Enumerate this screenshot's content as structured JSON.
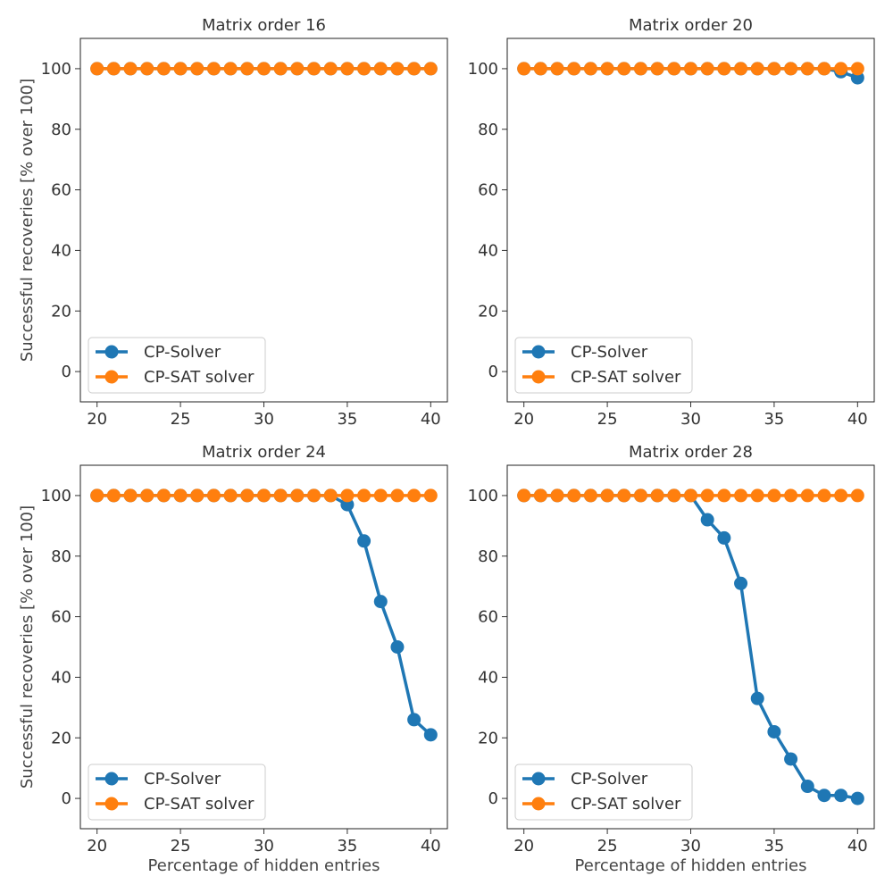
{
  "colors": {
    "series0": "#1f77b4",
    "series1": "#ff7f0e"
  },
  "chart_data": [
    {
      "type": "line",
      "title": "Matrix order 16",
      "xlabel": "",
      "ylabel": "Successful recoveries [% over 100]",
      "xlim": [
        19,
        41
      ],
      "ylim": [
        -10,
        110
      ],
      "xticks": [
        "20",
        "25",
        "30",
        "35",
        "40"
      ],
      "yticks": [
        "0",
        "20",
        "40",
        "60",
        "80",
        "100"
      ],
      "legend": "lower-left",
      "x": [
        20,
        21,
        22,
        23,
        24,
        25,
        26,
        27,
        28,
        29,
        30,
        31,
        32,
        33,
        34,
        35,
        36,
        37,
        38,
        39,
        40
      ],
      "series": [
        {
          "name": "CP-Solver",
          "values": [
            100,
            100,
            100,
            100,
            100,
            100,
            100,
            100,
            100,
            100,
            100,
            100,
            100,
            100,
            100,
            100,
            100,
            100,
            100,
            100,
            100
          ]
        },
        {
          "name": "CP-SAT solver",
          "values": [
            100,
            100,
            100,
            100,
            100,
            100,
            100,
            100,
            100,
            100,
            100,
            100,
            100,
            100,
            100,
            100,
            100,
            100,
            100,
            100,
            100
          ]
        }
      ]
    },
    {
      "type": "line",
      "title": "Matrix order 20",
      "xlabel": "",
      "ylabel": "",
      "xlim": [
        19,
        41
      ],
      "ylim": [
        -10,
        110
      ],
      "xticks": [
        "20",
        "25",
        "30",
        "35",
        "40"
      ],
      "yticks": [
        "0",
        "20",
        "40",
        "60",
        "80",
        "100"
      ],
      "legend": "lower-left",
      "x": [
        20,
        21,
        22,
        23,
        24,
        25,
        26,
        27,
        28,
        29,
        30,
        31,
        32,
        33,
        34,
        35,
        36,
        37,
        38,
        39,
        40
      ],
      "series": [
        {
          "name": "CP-Solver",
          "values": [
            100,
            100,
            100,
            100,
            100,
            100,
            100,
            100,
            100,
            100,
            100,
            100,
            100,
            100,
            100,
            100,
            100,
            100,
            100,
            99,
            97
          ]
        },
        {
          "name": "CP-SAT solver",
          "values": [
            100,
            100,
            100,
            100,
            100,
            100,
            100,
            100,
            100,
            100,
            100,
            100,
            100,
            100,
            100,
            100,
            100,
            100,
            100,
            100,
            100
          ]
        }
      ]
    },
    {
      "type": "line",
      "title": "Matrix order 24",
      "xlabel": "Percentage of hidden entries",
      "ylabel": "Successful recoveries [% over 100]",
      "xlim": [
        19,
        41
      ],
      "ylim": [
        -10,
        110
      ],
      "xticks": [
        "20",
        "25",
        "30",
        "35",
        "40"
      ],
      "yticks": [
        "0",
        "20",
        "40",
        "60",
        "80",
        "100"
      ],
      "legend": "lower-left",
      "x": [
        20,
        21,
        22,
        23,
        24,
        25,
        26,
        27,
        28,
        29,
        30,
        31,
        32,
        33,
        34,
        35,
        36,
        37,
        38,
        39,
        40
      ],
      "series": [
        {
          "name": "CP-Solver",
          "values": [
            100,
            100,
            100,
            100,
            100,
            100,
            100,
            100,
            100,
            100,
            100,
            100,
            100,
            100,
            100,
            97,
            85,
            65,
            50,
            26,
            21
          ]
        },
        {
          "name": "CP-SAT solver",
          "values": [
            100,
            100,
            100,
            100,
            100,
            100,
            100,
            100,
            100,
            100,
            100,
            100,
            100,
            100,
            100,
            100,
            100,
            100,
            100,
            100,
            100
          ]
        }
      ]
    },
    {
      "type": "line",
      "title": "Matrix order 28",
      "xlabel": "Percentage of hidden entries",
      "ylabel": "",
      "xlim": [
        19,
        41
      ],
      "ylim": [
        -10,
        110
      ],
      "xticks": [
        "20",
        "25",
        "30",
        "35",
        "40"
      ],
      "yticks": [
        "0",
        "20",
        "40",
        "60",
        "80",
        "100"
      ],
      "legend": "lower-left",
      "x": [
        20,
        21,
        22,
        23,
        24,
        25,
        26,
        27,
        28,
        29,
        30,
        31,
        32,
        33,
        34,
        35,
        36,
        37,
        38,
        39,
        40
      ],
      "series": [
        {
          "name": "CP-Solver",
          "values": [
            100,
            100,
            100,
            100,
            100,
            100,
            100,
            100,
            100,
            100,
            100,
            92,
            86,
            71,
            33,
            22,
            13,
            4,
            1,
            1,
            0
          ]
        },
        {
          "name": "CP-SAT solver",
          "values": [
            100,
            100,
            100,
            100,
            100,
            100,
            100,
            100,
            100,
            100,
            100,
            100,
            100,
            100,
            100,
            100,
            100,
            100,
            100,
            100,
            100
          ]
        }
      ]
    }
  ]
}
